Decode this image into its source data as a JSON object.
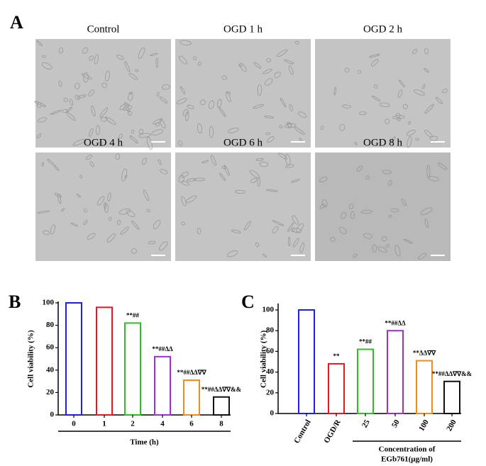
{
  "panel_a": {
    "label": "A",
    "images": [
      "Control",
      "OGD 1 h",
      "OGD 2 h",
      "OGD 4 h",
      "OGD 6 h",
      "OGD 8 h"
    ]
  },
  "chart_data": [
    {
      "type": "bar",
      "panel_label": "B",
      "y_label": "Cell viability (%)",
      "x_label": "Time (h)",
      "categories": [
        "0",
        "1",
        "2",
        "4",
        "6",
        "8"
      ],
      "values": [
        100,
        96,
        82,
        52,
        31,
        16
      ],
      "colors": [
        "#1f1fe0",
        "#e8171b",
        "#27c21f",
        "#a52bd6",
        "#f28a18",
        "#111111"
      ],
      "annotations": [
        null,
        null,
        "**##",
        "**##ΔΔ",
        "**##ΔΔ∇∇",
        "**##ΔΔ∇∇&&"
      ],
      "ylim": [
        0,
        100
      ],
      "yticks": [
        0,
        20,
        40,
        60,
        80,
        100
      ]
    },
    {
      "type": "bar",
      "panel_label": "C",
      "y_label": "Cell viability (%)",
      "x_label": [
        "Concentration of",
        "EGb761(μg/ml)"
      ],
      "categories": [
        "Control",
        "OGD/R",
        "25",
        "50",
        "100",
        "200"
      ],
      "values": [
        100,
        48,
        62,
        80,
        51,
        31
      ],
      "colors": [
        "#1f1fe0",
        "#e8171b",
        "#27c21f",
        "#a52bd6",
        "#f28a18",
        "#111111"
      ],
      "annotations": [
        null,
        "**",
        "**##",
        "**##ΔΔ",
        "**ΔΔ∇∇",
        "**##ΔΔ∇∇&&"
      ],
      "ylim": [
        0,
        105
      ],
      "yticks": [
        0,
        20,
        40,
        60,
        80,
        100
      ]
    }
  ]
}
